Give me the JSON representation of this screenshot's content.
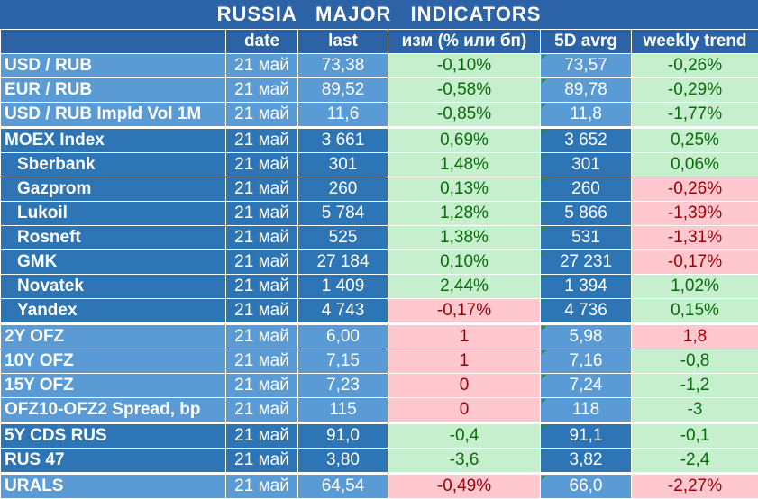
{
  "title": "RUSSIA   MAJOR   INDICATORS",
  "headers": [
    "",
    "date",
    "last",
    "изм (% или бп)",
    "5D avrg",
    "weekly trend"
  ],
  "rows": [
    {
      "name": "USD / RUB",
      "date": "21 май",
      "last": "73,38",
      "chg": "-0,10%",
      "avrg": "73,57",
      "trend": "-0,26%",
      "chg_color": "green",
      "trend_color": "green",
      "shade": "a",
      "indent": false,
      "sep": false
    },
    {
      "name": "EUR / RUB",
      "date": "21 май",
      "last": "89,52",
      "chg": "-0,58%",
      "avrg": "89,78",
      "trend": "-0,29%",
      "chg_color": "green",
      "trend_color": "green",
      "shade": "a",
      "indent": false,
      "sep": false
    },
    {
      "name": "USD / RUB Impld Vol 1M",
      "date": "21 май",
      "last": "11,6",
      "chg": "-0,85%",
      "avrg": "11,8",
      "trend": "-1,77%",
      "chg_color": "green",
      "trend_color": "green",
      "shade": "a",
      "indent": false,
      "sep": false
    },
    {
      "name": "MOEX Index",
      "date": "21 май",
      "last": "3 661",
      "chg": "0,69%",
      "avrg": "3 652",
      "trend": "0,25%",
      "chg_color": "green",
      "trend_color": "green",
      "shade": "b",
      "indent": false,
      "sep": true
    },
    {
      "name": "Sberbank",
      "date": "21 май",
      "last": "301",
      "chg": "1,48%",
      "avrg": "301",
      "trend": "0,06%",
      "chg_color": "green",
      "trend_color": "green",
      "shade": "b",
      "indent": true,
      "sep": false
    },
    {
      "name": "Gazprom",
      "date": "21 май",
      "last": "260",
      "chg": "0,13%",
      "avrg": "260",
      "trend": "-0,26%",
      "chg_color": "green",
      "trend_color": "red",
      "shade": "b",
      "indent": true,
      "sep": false
    },
    {
      "name": "Lukoil",
      "date": "21 май",
      "last": "5 784",
      "chg": "1,28%",
      "avrg": "5 866",
      "trend": "-1,39%",
      "chg_color": "green",
      "trend_color": "red",
      "shade": "b",
      "indent": true,
      "sep": false
    },
    {
      "name": "Rosneft",
      "date": "21 май",
      "last": "525",
      "chg": "1,38%",
      "avrg": "531",
      "trend": "-1,31%",
      "chg_color": "green",
      "trend_color": "red",
      "shade": "b",
      "indent": true,
      "sep": false
    },
    {
      "name": "GMK",
      "date": "21 май",
      "last": "27 184",
      "chg": "0,10%",
      "avrg": "27 231",
      "trend": "-0,17%",
      "chg_color": "green",
      "trend_color": "red",
      "shade": "b",
      "indent": true,
      "sep": false
    },
    {
      "name": "Novatek",
      "date": "21 май",
      "last": "1 409",
      "chg": "2,44%",
      "avrg": "1 394",
      "trend": "1,02%",
      "chg_color": "green",
      "trend_color": "green",
      "shade": "b",
      "indent": true,
      "sep": false
    },
    {
      "name": "Yandex",
      "date": "21 май",
      "last": "4 743",
      "chg": "-0,17%",
      "avrg": "4 736",
      "trend": "0,15%",
      "chg_color": "red",
      "trend_color": "green",
      "shade": "b",
      "indent": true,
      "sep": false
    },
    {
      "name": "2Y OFZ",
      "date": "21 май",
      "last": "6,00",
      "chg": "1",
      "avrg": "5,98",
      "trend": "1,8",
      "chg_color": "red",
      "trend_color": "red",
      "shade": "a",
      "indent": false,
      "sep": true
    },
    {
      "name": "10Y OFZ",
      "date": "21 май",
      "last": "7,15",
      "chg": "1",
      "avrg": "7,16",
      "trend": "-0,8",
      "chg_color": "red",
      "trend_color": "green",
      "shade": "a",
      "indent": false,
      "sep": false
    },
    {
      "name": "15Y OFZ",
      "date": "21 май",
      "last": "7,23",
      "chg": "0",
      "avrg": "7,24",
      "trend": "-1,2",
      "chg_color": "red",
      "trend_color": "green",
      "shade": "a",
      "indent": false,
      "sep": false
    },
    {
      "name": "OFZ10-OFZ2 Spread, bp",
      "date": "21 май",
      "last": "115",
      "chg": "0",
      "avrg": "118",
      "trend": "-3",
      "chg_color": "red",
      "trend_color": "green",
      "shade": "a",
      "indent": false,
      "sep": false
    },
    {
      "name": "5Y CDS RUS",
      "date": "21 май",
      "last": "91,0",
      "chg": "-0,4",
      "avrg": "91,1",
      "trend": "-0,1",
      "chg_color": "green",
      "trend_color": "green",
      "shade": "b",
      "indent": false,
      "sep": true
    },
    {
      "name": "RUS 47",
      "date": "21 май",
      "last": "3,80",
      "chg": "-3,6",
      "avrg": "3,82",
      "trend": "-2,4",
      "chg_color": "green",
      "trend_color": "green",
      "shade": "b",
      "indent": false,
      "sep": false
    },
    {
      "name": "URALS",
      "date": "21 май",
      "last": "64,54",
      "chg": "-0,49%",
      "avrg": "66,0",
      "trend": "-2,27%",
      "chg_color": "red",
      "trend_color": "red",
      "shade": "a",
      "indent": false,
      "sep": true
    }
  ],
  "colors": {
    "blue_dark": "#2b63a6",
    "blue_light": "#5b9bd5",
    "green_bg": "#c6efce",
    "red_bg": "#ffc7ce"
  }
}
